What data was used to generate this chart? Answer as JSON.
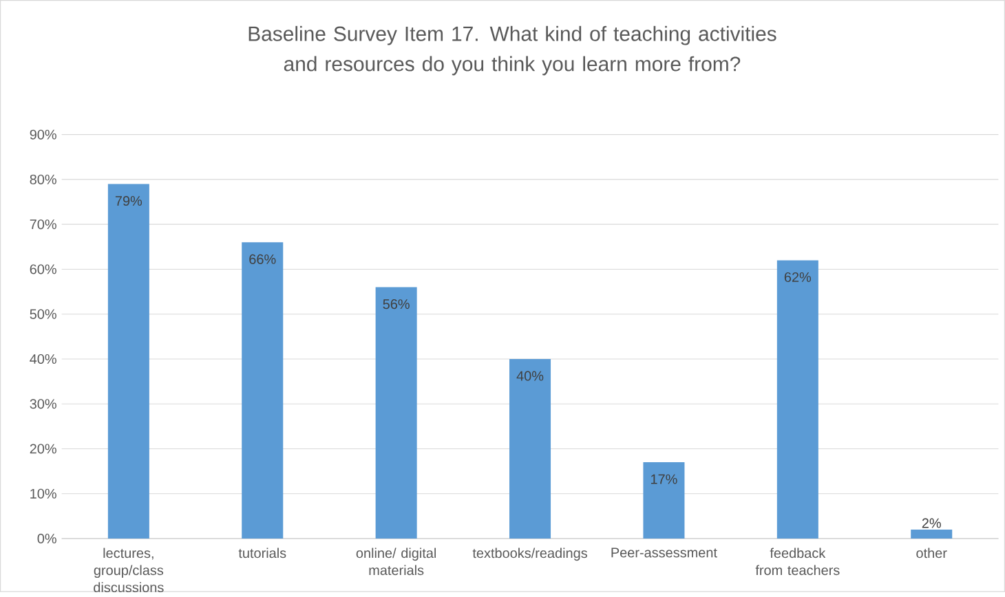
{
  "chart_data": {
    "type": "bar",
    "title": "Baseline Survey Item 17. What kind of teaching activities and resources do you think you learn more from?",
    "categories": [
      "lectures, group/class discussions",
      "tutorials",
      "online/ digital materials",
      "textbooks/readings",
      "Peer-assessment",
      "feedback from teachers",
      "other"
    ],
    "values": [
      79,
      66,
      56,
      40,
      17,
      62,
      2
    ],
    "value_labels": [
      "79%",
      "66%",
      "56%",
      "40%",
      "17%",
      "62%",
      "2%"
    ],
    "color": "#5b9bd5",
    "ylim": [
      0,
      90
    ],
    "yticks": [
      {
        "value": 0,
        "label": "0%"
      },
      {
        "value": 10,
        "label": "10%"
      },
      {
        "value": 20,
        "label": "20%"
      },
      {
        "value": 30,
        "label": "30%"
      },
      {
        "value": 40,
        "label": "40%"
      },
      {
        "value": 50,
        "label": "50%"
      },
      {
        "value": 60,
        "label": "60%"
      },
      {
        "value": 70,
        "label": "70%"
      },
      {
        "value": 80,
        "label": "80%"
      },
      {
        "value": 90,
        "label": "90%"
      }
    ],
    "grid": "y"
  }
}
